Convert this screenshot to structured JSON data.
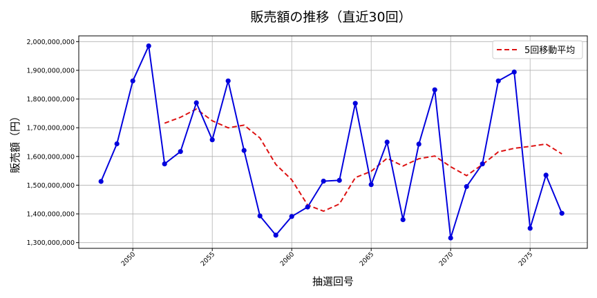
{
  "chart": {
    "title": "販売額の推移（直近30回）",
    "xlabel": "抽選回号",
    "ylabel": "販売額（円）",
    "legend_label": "5回移動平均"
  },
  "colors": {
    "sales_line": "#0000dd",
    "moving_average": "#dd1111",
    "grid": "#b0b0b0"
  },
  "chart_data": {
    "type": "line",
    "title": "販売額の推移（直近30回）",
    "xlabel": "抽選回号",
    "ylabel": "販売額（円）",
    "ylim": [
      1280000000,
      2020000000
    ],
    "xlim": [
      2046.6,
      2078.6
    ],
    "grid": true,
    "legend_position": "upper right",
    "x_ticks": [
      2050,
      2055,
      2060,
      2065,
      2070,
      2075
    ],
    "y_ticks": [
      1300000000,
      1400000000,
      1500000000,
      1600000000,
      1700000000,
      1800000000,
      1900000000,
      2000000000
    ],
    "y_tick_labels": [
      "1,300,000,000",
      "1,400,000,000",
      "1,500,000,000",
      "1,600,000,000",
      "1,700,000,000",
      "1,800,000,000",
      "1,900,000,000",
      "2,000,000,000"
    ],
    "x": [
      2048,
      2049,
      2050,
      2051,
      2052,
      2053,
      2054,
      2055,
      2056,
      2057,
      2058,
      2059,
      2060,
      2061,
      2062,
      2063,
      2064,
      2065,
      2066,
      2067,
      2068,
      2069,
      2070,
      2071,
      2072,
      2073,
      2074,
      2075,
      2076,
      2077
    ],
    "series": [
      {
        "name": "販売額",
        "style": "solid-with-markers",
        "in_legend": false,
        "values": [
          1513000000,
          1644000000,
          1863000000,
          1985000000,
          1574000000,
          1617000000,
          1787000000,
          1658000000,
          1863000000,
          1621000000,
          1393000000,
          1326000000,
          1391000000,
          1424000000,
          1514000000,
          1517000000,
          1785000000,
          1502000000,
          1650000000,
          1380000000,
          1643000000,
          1832000000,
          1316000000,
          1495000000,
          1574000000,
          1863000000,
          1894000000,
          1350000000,
          1535000000,
          1402000000
        ]
      },
      {
        "name": "5回移動平均",
        "style": "dashed",
        "in_legend": true,
        "values": [
          null,
          null,
          null,
          null,
          1715800000,
          1736600000,
          1765200000,
          1724200000,
          1699800000,
          1709200000,
          1664400000,
          1572200000,
          1518800000,
          1431000000,
          1409600000,
          1434400000,
          1526200000,
          1548400000,
          1593600000,
          1566800000,
          1592000000,
          1601400000,
          1564200000,
          1533200000,
          1572000000,
          1616000000,
          1628400000,
          1635200000,
          1643200000,
          1608800000
        ]
      }
    ]
  }
}
